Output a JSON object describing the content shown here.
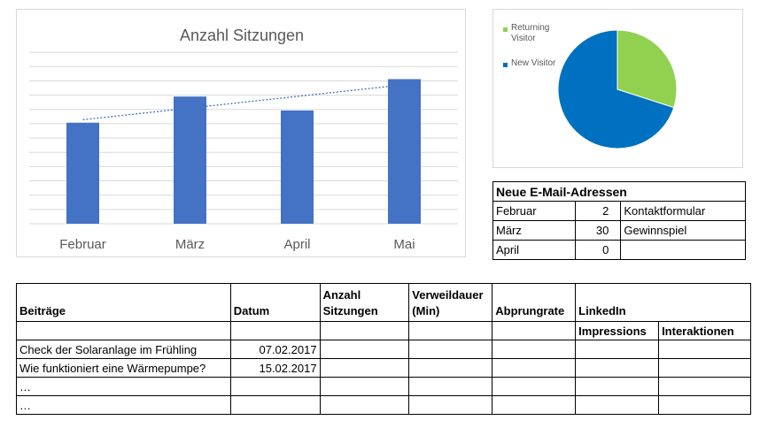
{
  "chart_data": [
    {
      "type": "bar",
      "title": "Anzahl Sitzungen",
      "categories": [
        "Februar",
        "März",
        "April",
        "Mai"
      ],
      "values": [
        58,
        73,
        65,
        83
      ],
      "ylim": [
        0,
        100
      ],
      "trendline": "linear",
      "color": "#4472C4",
      "trend_color": "#4472C4",
      "grid": true
    },
    {
      "type": "pie",
      "slices": [
        {
          "label": "Returning Visitor",
          "value": 30,
          "color": "#92D050"
        },
        {
          "label": "New Visitor",
          "value": 70,
          "color": "#0070C0"
        }
      ],
      "legend": "left"
    }
  ],
  "email_table": {
    "title": "Neue E-Mail-Adressen",
    "rows": [
      {
        "month": "Februar",
        "count": "2",
        "source": "Kontaktformular"
      },
      {
        "month": "März",
        "count": "30",
        "source": "Gewinnspiel"
      },
      {
        "month": "April",
        "count": "0",
        "source": ""
      }
    ]
  },
  "posts_table": {
    "headers": {
      "posts": "Beiträge",
      "date": "Datum",
      "sessions_line1": "Anzahl",
      "sessions_line2": "Sitzungen",
      "dwell_line1": "Verweildauer",
      "dwell_line2": "(Min)",
      "bounce": "Abprungrate",
      "linkedin": "LinkedIn",
      "impressions": "Impressions",
      "interactions": "Interaktionen"
    },
    "rows": [
      {
        "title": "Check der Solaranlage im Frühling",
        "date": "07.02.2017"
      },
      {
        "title": "Wie funktioniert eine Wärmepumpe?",
        "date": "15.02.2017"
      },
      {
        "title": "…",
        "date": ""
      },
      {
        "title": "…",
        "date": ""
      }
    ]
  }
}
